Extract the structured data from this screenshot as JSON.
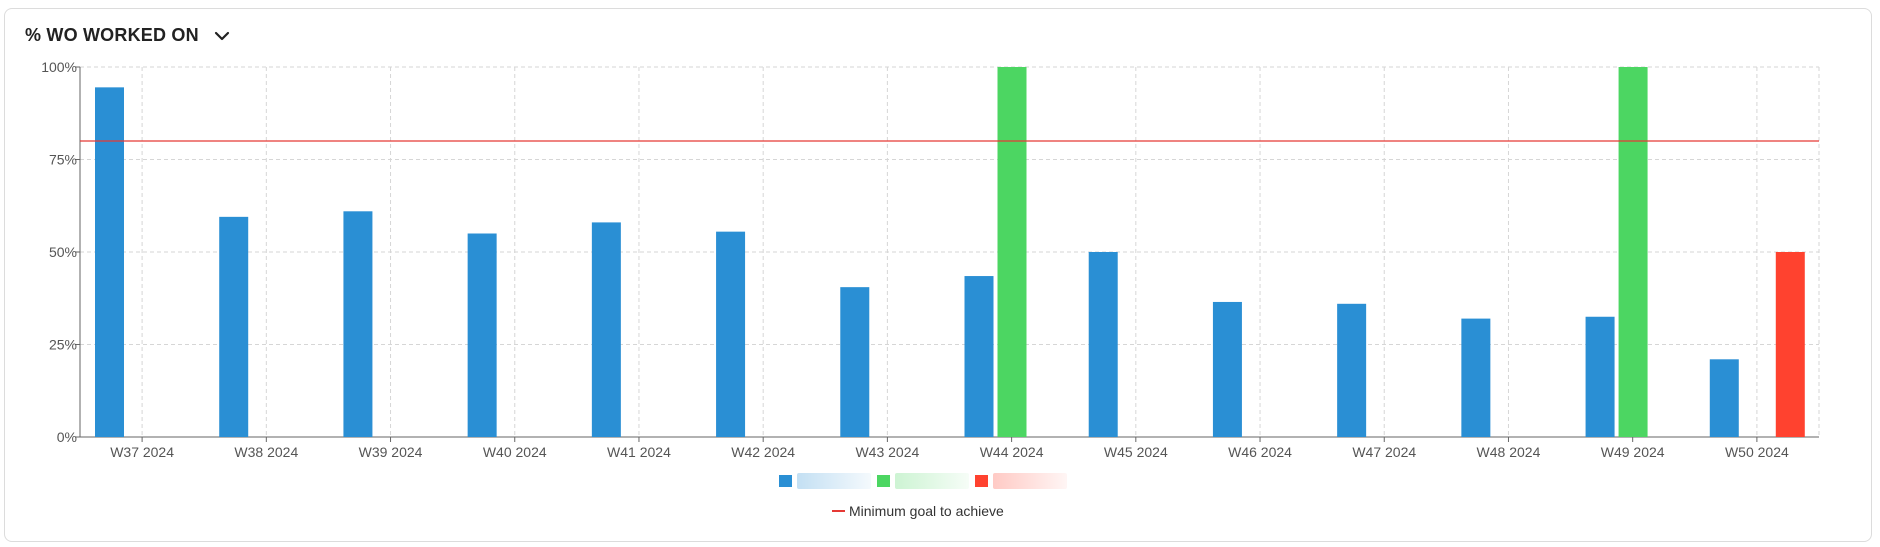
{
  "header": {
    "title": "% WO WORKED ON",
    "dropdown_icon": "chevron-down-icon"
  },
  "colors": {
    "series_blue": "#2a8fd4",
    "series_green": "#4cd662",
    "series_red": "#ff422f",
    "goal_line": "#e53935",
    "grid": "#d6d6d6",
    "axis": "#666666"
  },
  "chart_data": {
    "type": "bar",
    "title": "% WO WORKED ON",
    "xlabel": "",
    "ylabel": "",
    "ylim": [
      0,
      100
    ],
    "yticks": [
      "0%",
      "25%",
      "50%",
      "75%",
      "100%"
    ],
    "ytick_values": [
      0,
      25,
      50,
      75,
      100
    ],
    "categories": [
      "W37 2024",
      "W38 2024",
      "W39 2024",
      "W40 2024",
      "W41 2024",
      "W42 2024",
      "W43 2024",
      "W44 2024",
      "W45 2024",
      "W46 2024",
      "W47 2024",
      "W48 2024",
      "W49 2024",
      "W50 2024"
    ],
    "series": [
      {
        "color": "#2a8fd4",
        "values": [
          94.5,
          59.5,
          61,
          55,
          58,
          55.5,
          40.5,
          43.5,
          50,
          36.5,
          36,
          32,
          32.5,
          21
        ]
      },
      {
        "color": "#4cd662",
        "values": [
          null,
          null,
          null,
          null,
          null,
          null,
          null,
          100,
          null,
          null,
          null,
          null,
          100,
          null
        ]
      },
      {
        "color": "#ff422f",
        "values": [
          null,
          null,
          null,
          null,
          null,
          null,
          null,
          null,
          null,
          null,
          null,
          null,
          null,
          50
        ]
      }
    ],
    "reference_line": {
      "name": "Minimum goal to achieve",
      "value": 80,
      "color": "#e53935"
    },
    "grid": true,
    "legend_position": "bottom-center"
  }
}
